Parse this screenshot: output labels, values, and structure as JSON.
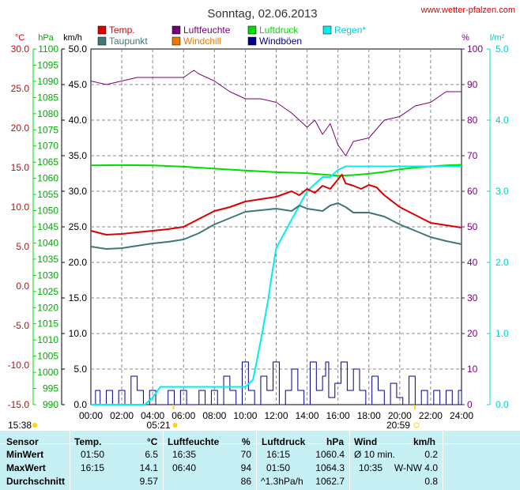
{
  "site_url": "www.wetter-pfalzen.com",
  "colors": {
    "temp": "#dd0000",
    "dewpoint": "#3f7777",
    "humidity": "#770077",
    "pressure": "#00dd00",
    "windchill": "#ee7700",
    "gust": "#000088",
    "rain": "#00eeee",
    "grid": "#888888",
    "table_bg": "#c6f0f4"
  },
  "axes": {
    "temp": {
      "unit": "°C",
      "ticks": [
        "30.0",
        "25.0",
        "20.0",
        "15.0",
        "10.0",
        "5.0",
        "0.0",
        "-5.0",
        "-10.0",
        "-15.0"
      ],
      "min": -15,
      "max": 30
    },
    "pressure": {
      "unit": "hPa",
      "ticks": [
        "1100",
        "1095",
        "1090",
        "1085",
        "1080",
        "1075",
        "1070",
        "1065",
        "1060",
        "1055",
        "1050",
        "1045",
        "1040",
        "1035",
        "1030",
        "1025",
        "1020",
        "1015",
        "1010",
        "1005",
        "1000",
        "995",
        "990"
      ],
      "min": 990,
      "max": 1100
    },
    "wind": {
      "unit": "km/h",
      "ticks": [
        "50.0",
        "45.0",
        "40.0",
        "35.0",
        "30.0",
        "25.0",
        "20.0",
        "15.0",
        "10.0",
        "5.0",
        "0.0"
      ],
      "min": 0,
      "max": 50
    },
    "humidity": {
      "unit": "%",
      "ticks": [
        "100",
        "90",
        "80",
        "70",
        "60",
        "50",
        "40",
        "30",
        "20",
        "10",
        "0"
      ],
      "min": 0,
      "max": 100
    },
    "rain": {
      "unit": "l/m²",
      "ticks": [
        "5.0",
        "4.0",
        "3.0",
        "2.0",
        "1.0",
        "0.0"
      ],
      "min": 0,
      "max": 5
    },
    "time_ticks": [
      "00:00",
      "02:00",
      "04:00",
      "06:00",
      "08:00",
      "10:00",
      "12:00",
      "14:00",
      "16:00",
      "18:00",
      "20:00",
      "22:00",
      "24:00"
    ]
  },
  "sun": {
    "moonrise": "15:38",
    "sunrise": "05:21",
    "sunset": "20:59"
  },
  "chart_data": {
    "type": "line",
    "title": "Sonntag, 02.06.2013",
    "x_unit": "hours",
    "xlim": [
      0,
      24
    ],
    "legend": [
      "Temp.",
      "Taupunkt",
      "Luftfeuchte",
      "Windchill",
      "Luftdruck",
      "Windböen",
      "Regen*"
    ],
    "series": [
      {
        "name": "Temp.",
        "axis": "temp",
        "x": [
          0,
          1,
          2,
          3,
          4,
          5,
          6,
          7,
          7.5,
          8,
          9,
          10,
          11,
          12,
          13,
          13.5,
          14,
          14.5,
          15,
          15.5,
          16,
          16.25,
          16.5,
          17,
          17.5,
          18,
          18.5,
          19,
          20,
          21,
          22,
          23,
          24
        ],
        "y": [
          7.0,
          6.5,
          6.6,
          6.8,
          7.0,
          7.2,
          7.5,
          8.5,
          9.0,
          9.5,
          10.0,
          10.7,
          11.0,
          11.3,
          12.0,
          11.5,
          12.3,
          11.8,
          12.7,
          12.3,
          13.5,
          14.1,
          13.0,
          12.7,
          12.3,
          12.8,
          12.5,
          11.5,
          10.0,
          9.0,
          8.0,
          7.7,
          7.4
        ]
      },
      {
        "name": "Taupunkt",
        "axis": "temp",
        "x": [
          0,
          1,
          2,
          3,
          4,
          5,
          6,
          7,
          8,
          9,
          10,
          11,
          12,
          13,
          13.5,
          14,
          15,
          15.5,
          16,
          16.5,
          17,
          18,
          19,
          20,
          21,
          22,
          23,
          24
        ],
        "y": [
          5.0,
          4.7,
          4.8,
          5.1,
          5.4,
          5.6,
          5.9,
          6.7,
          7.8,
          8.6,
          9.4,
          9.6,
          9.8,
          9.5,
          10.2,
          9.8,
          9.5,
          10.2,
          10.5,
          10.0,
          9.3,
          9.3,
          8.8,
          7.8,
          7.0,
          6.2,
          5.7,
          5.3
        ]
      },
      {
        "name": "Luftfeuchte",
        "axis": "humidity",
        "x": [
          0,
          1,
          2,
          3,
          4,
          5,
          6,
          6.67,
          7,
          8,
          9,
          10,
          11,
          12,
          13,
          14,
          14.5,
          15,
          15.5,
          16,
          16.5,
          17,
          18,
          19,
          20,
          21,
          22,
          23,
          24
        ],
        "y": [
          91,
          90,
          91,
          92,
          92,
          92,
          92,
          94,
          93,
          91,
          88,
          86,
          86,
          85,
          82,
          78,
          80,
          76,
          79,
          73,
          70,
          74,
          75,
          80,
          81,
          84,
          85,
          88,
          88
        ]
      },
      {
        "name": "Luftdruck",
        "axis": "pressure",
        "x": [
          0,
          2,
          4,
          6,
          8,
          10,
          12,
          14,
          15,
          16,
          17,
          18,
          19,
          20,
          21,
          22,
          23,
          24
        ],
        "y": [
          1064.0,
          1064.1,
          1064.0,
          1063.6,
          1063.0,
          1062.4,
          1061.9,
          1061.6,
          1061.2,
          1060.8,
          1061.0,
          1061.4,
          1062.0,
          1062.8,
          1063.3,
          1063.7,
          1064.0,
          1064.2
        ]
      },
      {
        "name": "Regen*",
        "axis": "rain",
        "x": [
          0,
          3.5,
          4,
          4.5,
          10,
          10.5,
          11,
          11.5,
          11.7,
          12,
          12.5,
          13,
          13.5,
          14,
          14.5,
          15,
          15.5,
          16,
          16.5,
          17,
          18,
          19,
          20,
          21,
          22,
          23,
          24
        ],
        "y": [
          0,
          0,
          0.1,
          0.25,
          0.25,
          0.35,
          0.9,
          1.5,
          1.8,
          2.2,
          2.4,
          2.6,
          2.8,
          3.0,
          3.1,
          3.2,
          3.2,
          3.3,
          3.35,
          3.35,
          3.35,
          3.35,
          3.35,
          3.35,
          3.35,
          3.35,
          3.35
        ]
      },
      {
        "name": "Windböen",
        "axis": "wind",
        "x": [
          0,
          0.3,
          0.6,
          1,
          1.4,
          1.8,
          2.2,
          2.6,
          3,
          3.4,
          3.8,
          4.2,
          4.6,
          5,
          5.4,
          5.8,
          6.2,
          6.6,
          7,
          7.4,
          7.8,
          8.2,
          8.6,
          9,
          9.4,
          9.8,
          10.2,
          10.6,
          11,
          11.4,
          11.8,
          12.2,
          12.6,
          13,
          13.4,
          13.8,
          14.2,
          14.6,
          15,
          15.2,
          15.4,
          15.8,
          16.2,
          16.6,
          17,
          17.4,
          17.8,
          18.2,
          18.6,
          19,
          19.4,
          19.8,
          20.2,
          20.6,
          21,
          21.4,
          21.8,
          22.2,
          22.6,
          23,
          23.4,
          23.8,
          24
        ],
        "y": [
          0,
          2,
          0,
          2,
          0,
          2,
          0,
          4,
          2,
          0,
          2,
          0,
          0,
          2,
          0,
          2,
          0,
          0,
          2,
          0,
          2,
          0,
          4,
          2,
          0,
          6,
          2,
          0,
          4,
          2,
          6,
          0,
          2,
          5,
          2,
          0,
          6,
          2,
          4,
          6,
          1,
          3,
          6,
          2,
          5,
          2,
          0,
          4,
          2,
          0,
          3,
          1,
          0,
          4,
          0,
          2,
          0,
          2,
          0,
          2,
          0,
          2,
          0
        ]
      }
    ]
  },
  "table": {
    "headers": {
      "sensor": "Sensor",
      "temp": "Temp.",
      "temp_unit": "°C",
      "hum": "Luftfeuchte",
      "hum_unit": "%",
      "press": "Luftdruck",
      "press_unit": "hPa",
      "wind": "Wind",
      "wind_unit": "km/h"
    },
    "rows": [
      {
        "label": "MinWert",
        "temp_time": "01:50",
        "temp_val": "6.5",
        "hum_time": "16:35",
        "hum_val": "70",
        "press_time": "16:15",
        "press_val": "1060.4",
        "wind_time": "Ø 10 min.",
        "wind_val": "0.2"
      },
      {
        "label": "MaxWert",
        "temp_time": "16:15",
        "temp_val": "14.1",
        "hum_time": "06:40",
        "hum_val": "94",
        "press_time": "01:50",
        "press_val": "1064.3",
        "wind_time": "10:35",
        "wind_val": "W-NW 4.0"
      },
      {
        "label": "Durchschnitt",
        "temp_time": "",
        "temp_val": "9.57",
        "hum_time": "",
        "hum_val": "86",
        "press_time": "^1.3hPa/h",
        "press_val": "1062.7",
        "wind_time": "",
        "wind_val": "0.8"
      }
    ]
  }
}
